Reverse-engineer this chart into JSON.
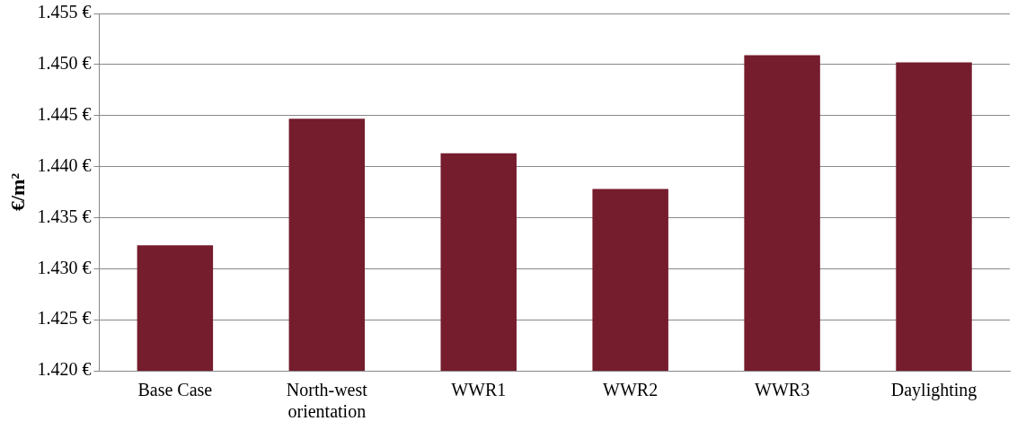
{
  "chart_data": {
    "type": "bar",
    "ylabel": "€/m²",
    "categories": [
      "Base Case",
      "North-west orientation",
      "WWR1",
      "WWR2",
      "WWR3",
      "Daylighting"
    ],
    "values": [
      1432.3,
      1444.7,
      1441.3,
      1437.8,
      1450.9,
      1450.2
    ],
    "color": "#751c2d",
    "ylim": [
      1420,
      1455
    ],
    "yticks": [
      {
        "value": 1420,
        "label": "1.420 €"
      },
      {
        "value": 1425,
        "label": "1.425 €"
      },
      {
        "value": 1430,
        "label": "1.430 €"
      },
      {
        "value": 1435,
        "label": "1.435 €"
      },
      {
        "value": 1440,
        "label": "1.440 €"
      },
      {
        "value": 1445,
        "label": "1.445 €"
      },
      {
        "value": 1450,
        "label": "1.450 €"
      },
      {
        "value": 1455,
        "label": "1.455 €"
      }
    ],
    "grid": "y",
    "legend": false
  }
}
